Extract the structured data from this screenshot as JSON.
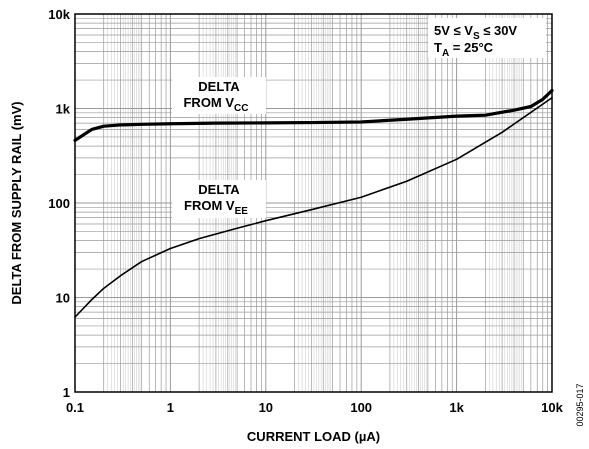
{
  "chart_data": {
    "type": "line",
    "xscale": "log",
    "yscale": "log",
    "xlim": [
      0.1,
      10000
    ],
    "ylim": [
      1,
      10000
    ],
    "xlabel": "CURRENT LOAD (µA)",
    "ylabel": "DELTA FROM SUPPLY RAIL (mV)",
    "x_tick_labels": [
      "0.1",
      "1",
      "10",
      "100",
      "1k",
      "10k"
    ],
    "y_tick_labels": [
      "1",
      "10",
      "100",
      "1k",
      "10k"
    ],
    "x_ticks": [
      0.1,
      1,
      10,
      100,
      1000,
      10000
    ],
    "y_ticks": [
      1,
      10,
      100,
      1000,
      10000
    ],
    "grid": true,
    "conditions": [
      {
        "main": "5V ≤ V",
        "sub": "S",
        "rest": " ≤ 30V"
      },
      {
        "main": "T",
        "sub": "A",
        "rest": " = 25°C"
      }
    ],
    "series": [
      {
        "name": "DELTA FROM VCC",
        "label_line1": "DELTA",
        "label_line2_main": "FROM V",
        "label_line2_sub": "CC",
        "color": "#000000",
        "x": [
          0.1,
          0.15,
          0.2,
          0.3,
          0.5,
          1,
          3,
          10,
          30,
          100,
          300,
          1000,
          2000,
          4000,
          6000,
          8000,
          10000
        ],
        "y": [
          460,
          600,
          650,
          670,
          680,
          690,
          700,
          705,
          710,
          720,
          770,
          830,
          850,
          960,
          1050,
          1250,
          1550
        ]
      },
      {
        "name": "DELTA FROM VEE",
        "label_line1": "DELTA",
        "label_line2_main": "FROM V",
        "label_line2_sub": "EE",
        "color": "#000000",
        "x": [
          0.1,
          0.15,
          0.2,
          0.3,
          0.5,
          1,
          2,
          5,
          10,
          30,
          100,
          300,
          1000,
          3000,
          10000
        ],
        "y": [
          6.2,
          9.5,
          12.5,
          17,
          24,
          33,
          42,
          54,
          65,
          85,
          115,
          170,
          290,
          560,
          1300
        ]
      }
    ]
  },
  "figure_code": "00295-017"
}
